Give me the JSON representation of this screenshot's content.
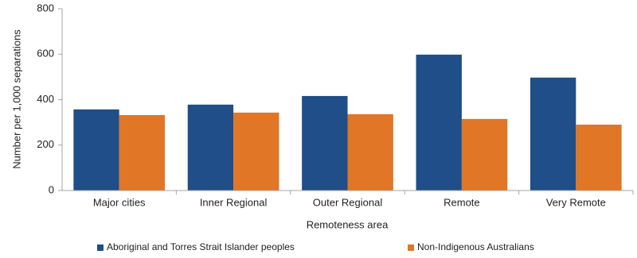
{
  "chart_data": {
    "type": "bar",
    "x_label": "Remoteness area",
    "y_label": "Number per 1,000 separations",
    "categories": [
      "Major cities",
      "Inner Regional",
      "Outer Regional",
      "Remote",
      "Very Remote"
    ],
    "series": [
      {
        "name": "Aboriginal and Torres Strait Islander peoples",
        "color": "#1f4e88",
        "values": [
          357,
          378,
          416,
          598,
          497
        ]
      },
      {
        "name": "Non-Indigenous Australians",
        "color": "#e07626",
        "values": [
          332,
          343,
          336,
          315,
          290
        ]
      }
    ],
    "ylim": [
      0,
      800
    ],
    "yticks": [
      0,
      200,
      400,
      600,
      800
    ],
    "grid": false,
    "legend": "bottom"
  }
}
